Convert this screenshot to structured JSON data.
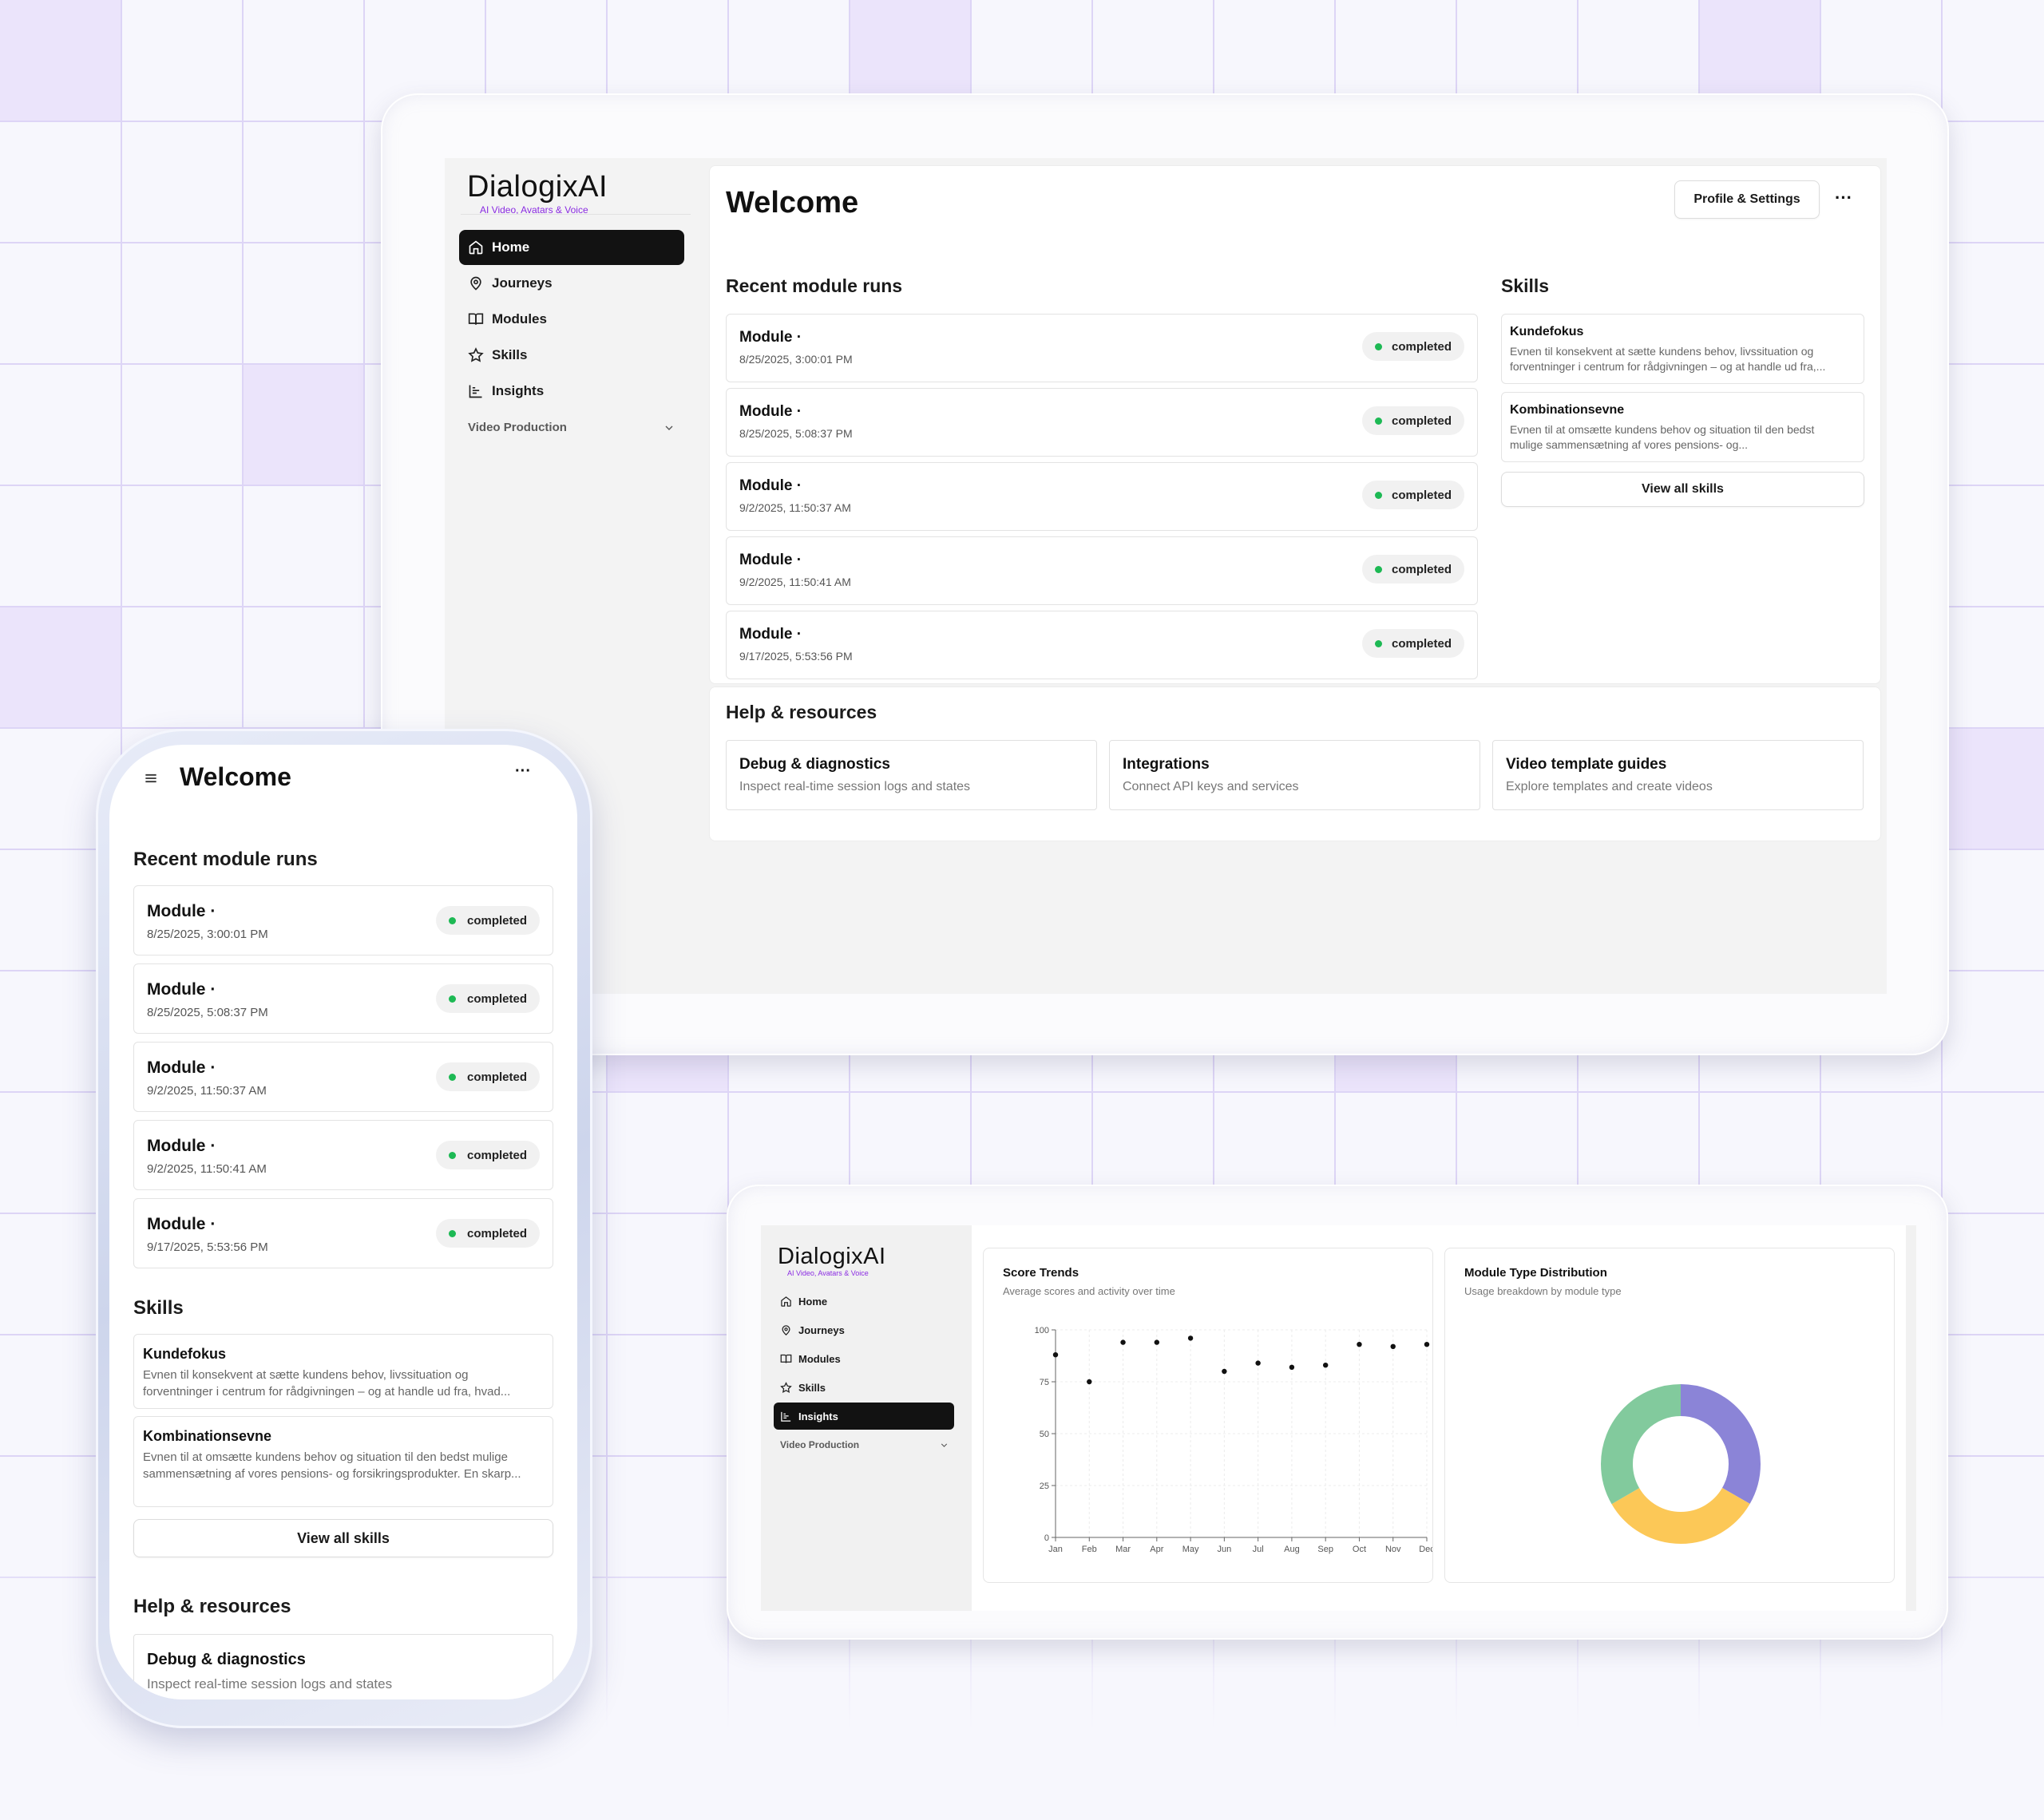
{
  "brand": {
    "name": "DialogixAI",
    "tagline": "AI Video, Avatars & Voice"
  },
  "colors": {
    "accent": "#121212",
    "status_dot": "#1db954",
    "brand_tagline": "#8a2be2",
    "grid_highlight": "#ebe4fb"
  },
  "desktop": {
    "nav": {
      "items": [
        {
          "label": "Home",
          "icon": "home-icon"
        },
        {
          "label": "Journeys",
          "icon": "map-pin-icon"
        },
        {
          "label": "Modules",
          "icon": "book-icon"
        },
        {
          "label": "Skills",
          "icon": "star-icon"
        },
        {
          "label": "Insights",
          "icon": "chart-icon"
        }
      ],
      "section": "Video Production",
      "active": "Home"
    },
    "page_title": "Welcome",
    "profile_button": "Profile & Settings",
    "more_button": "···",
    "recent_runs_title": "Recent module runs",
    "runs": [
      {
        "title": "Module ·",
        "date": "8/25/2025, 3:00:01 PM",
        "status": "completed"
      },
      {
        "title": "Module ·",
        "date": "8/25/2025, 5:08:37 PM",
        "status": "completed"
      },
      {
        "title": "Module ·",
        "date": "9/2/2025, 11:50:37 AM",
        "status": "completed"
      },
      {
        "title": "Module ·",
        "date": "9/2/2025, 11:50:41 AM",
        "status": "completed"
      },
      {
        "title": "Module ·",
        "date": "9/17/2025, 5:53:56 PM",
        "status": "completed"
      }
    ],
    "skills_title": "Skills",
    "skills": [
      {
        "title": "Kundefokus",
        "desc1": "Evnen til konsekvent at sætte kundens behov, livssituation og",
        "desc2": "forventninger i centrum for rådgivningen – og at handle ud fra,..."
      },
      {
        "title": "Kombinationsevne",
        "desc1": "Evnen til at omsætte kundens behov og situation til den bedst",
        "desc2": "mulige sammensætning af vores pensions- og..."
      }
    ],
    "view_all_skills": "View all skills",
    "help_title": "Help & resources",
    "help": [
      {
        "title": "Debug & diagnostics",
        "sub": "Inspect real-time session logs and states"
      },
      {
        "title": "Integrations",
        "sub": "Connect API keys and services"
      },
      {
        "title": "Video template guides",
        "sub": "Explore templates and create videos"
      }
    ]
  },
  "insights": {
    "nav": {
      "items": [
        {
          "label": "Home"
        },
        {
          "label": "Journeys"
        },
        {
          "label": "Modules"
        },
        {
          "label": "Skills"
        },
        {
          "label": "Insights"
        }
      ],
      "section": "Video Production",
      "active": "Insights"
    },
    "score_card": {
      "title": "Score Trends",
      "subtitle": "Average scores and activity over time"
    },
    "dist_card": {
      "title": "Module Type Distribution",
      "subtitle": "Usage breakdown by module type"
    }
  },
  "chart_data": [
    {
      "type": "scatter",
      "title": "Score Trends",
      "subtitle": "Average scores and activity over time",
      "x": [
        "Jan",
        "Feb",
        "Mar",
        "Apr",
        "May",
        "Jun",
        "Jul",
        "Aug",
        "Sep",
        "Oct",
        "Nov",
        "Dec"
      ],
      "y": [
        88,
        75,
        94,
        94,
        96,
        80,
        84,
        82,
        83,
        93,
        92,
        93
      ],
      "ylim": [
        0,
        100
      ],
      "yticks": [
        0,
        25,
        50,
        75,
        100
      ],
      "grid": true
    },
    {
      "type": "pie",
      "donut": true,
      "title": "Module Type Distribution",
      "subtitle": "Usage breakdown by module type",
      "slices": [
        {
          "value": 33.3,
          "color": "#8b84d7"
        },
        {
          "value": 33.3,
          "color": "#fcc857"
        },
        {
          "value": 33.4,
          "color": "#82ca9d"
        }
      ]
    }
  ],
  "phone": {
    "page_title": "Welcome",
    "menu_icon": "hamburger-icon",
    "more_button": "···",
    "recent_runs_title": "Recent module runs",
    "runs": [
      {
        "title": "Module ·",
        "date": "8/25/2025, 3:00:01 PM",
        "status": "completed"
      },
      {
        "title": "Module ·",
        "date": "8/25/2025, 5:08:37 PM",
        "status": "completed"
      },
      {
        "title": "Module ·",
        "date": "9/2/2025, 11:50:37 AM",
        "status": "completed"
      },
      {
        "title": "Module ·",
        "date": "9/2/2025, 11:50:41 AM",
        "status": "completed"
      },
      {
        "title": "Module ·",
        "date": "9/17/2025, 5:53:56 PM",
        "status": "completed"
      }
    ],
    "skills_title": "Skills",
    "skills": [
      {
        "title": "Kundefokus",
        "desc1": "Evnen til konsekvent at sætte kundens behov, livssituation og",
        "desc2": "forventninger i centrum for rådgivningen – og at handle ud fra, hvad..."
      },
      {
        "title": "Kombinationsevne",
        "desc1": "Evnen til at omsætte kundens behov og situation til den bedst mulige",
        "desc2": "sammensætning af vores pensions- og forsikringsprodukter. En skarp..."
      }
    ],
    "view_all_skills": "View all skills",
    "help_title": "Help & resources",
    "help": [
      {
        "title": "Debug & diagnostics",
        "sub": "Inspect real-time session logs and states"
      }
    ]
  }
}
